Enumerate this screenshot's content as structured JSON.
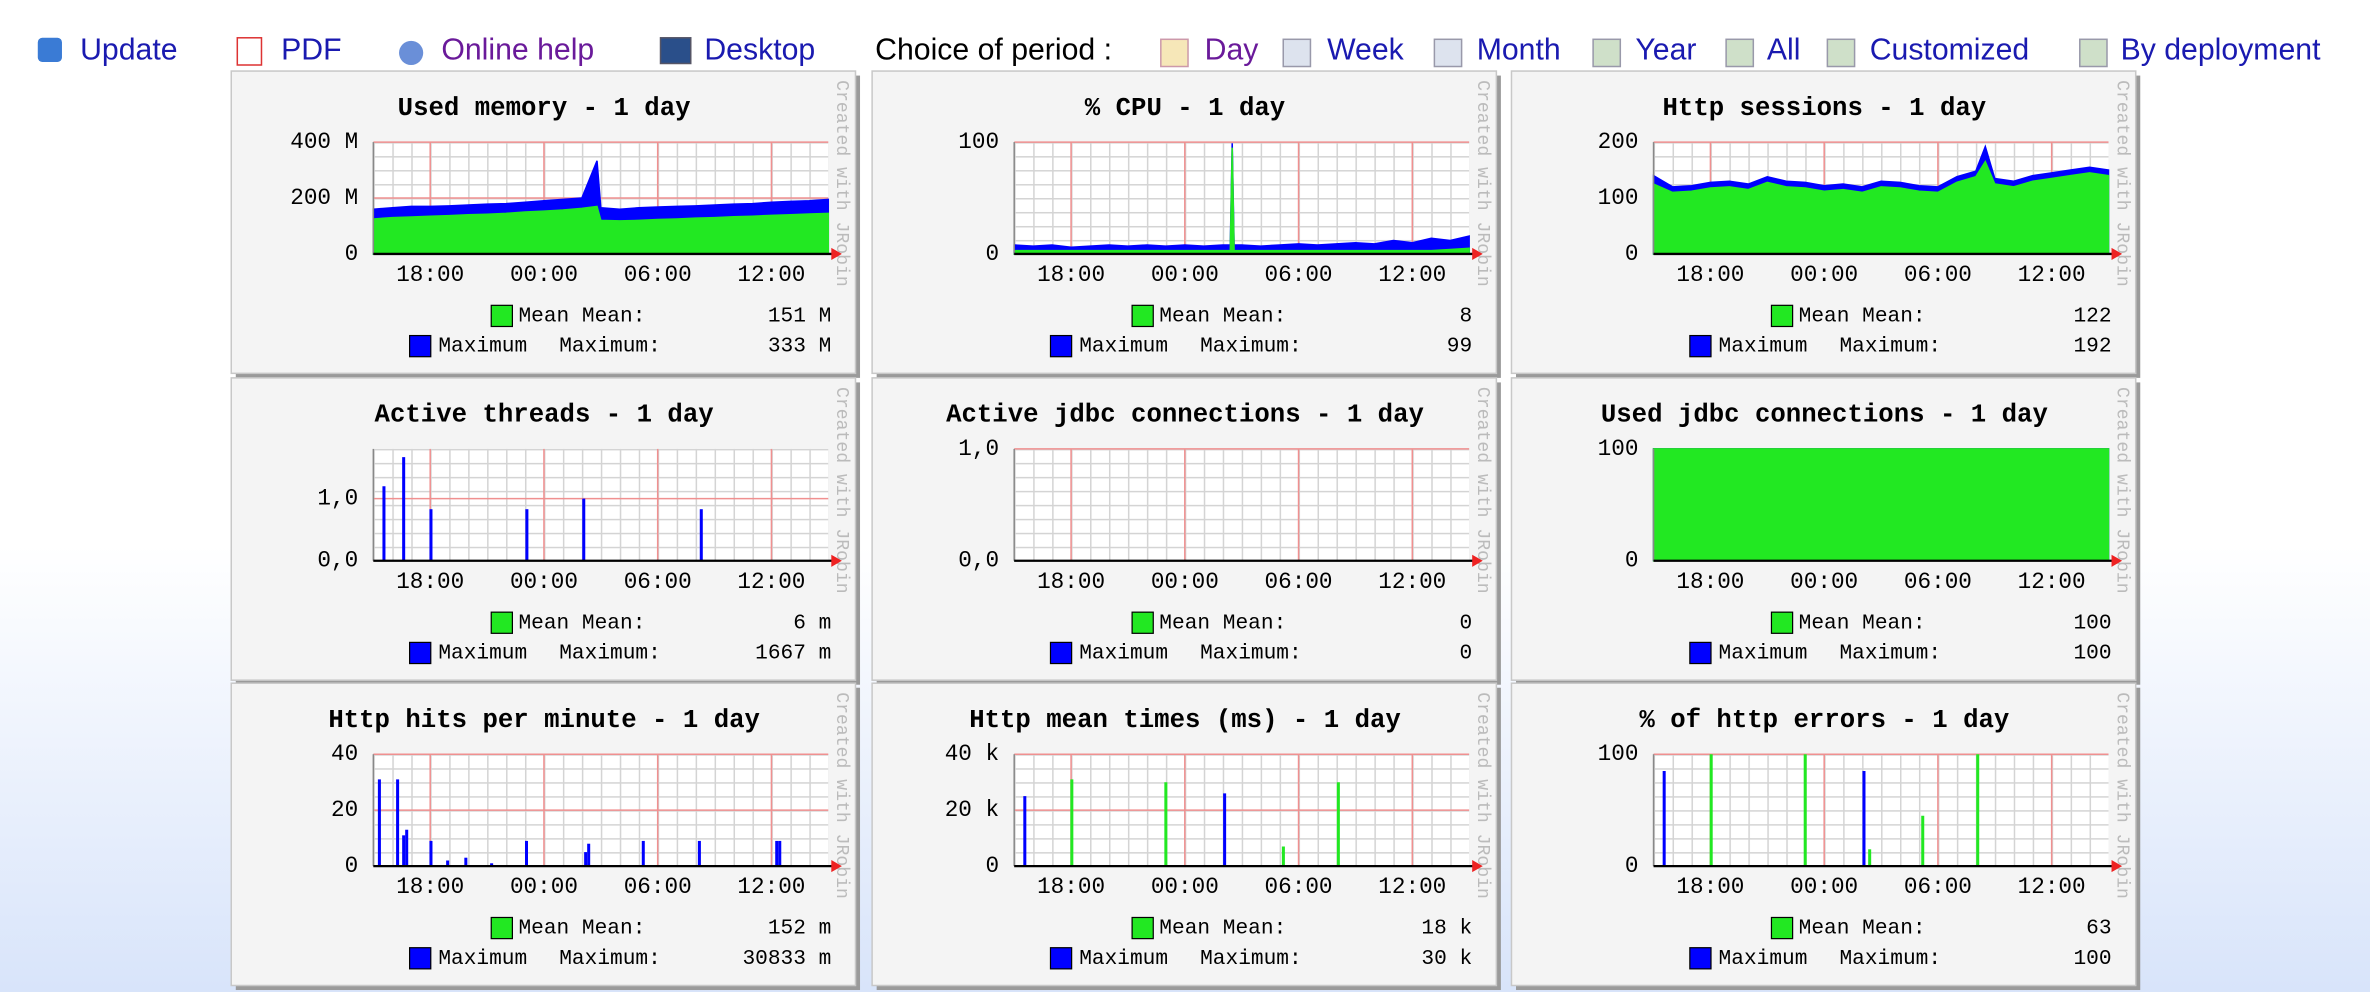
{
  "toolbar": {
    "links": [
      "Update",
      "PDF",
      "Online help",
      "Desktop"
    ],
    "period_label": "Choice of period :",
    "periods": [
      "Day",
      "Week",
      "Month",
      "Year",
      "All",
      "Customized",
      "By deployment"
    ]
  },
  "watermark": "Created with JRobin",
  "time_axis": {
    "xlim": [
      15,
      39
    ],
    "xticks": [
      {
        "value": 18,
        "label": "18:00"
      },
      {
        "value": 24,
        "label": "00:00"
      },
      {
        "value": 30,
        "label": "06:00"
      },
      {
        "value": 36,
        "label": "12:00"
      }
    ]
  },
  "charts": [
    {
      "title": "Used memory - 1 day",
      "type": "area",
      "ylim": [
        0,
        400
      ],
      "yticks": [
        0,
        {
          "value": 200,
          "label": "200 M"
        },
        {
          "value": 400,
          "label": "400 M"
        }
      ],
      "x": [
        15,
        16,
        17,
        18,
        19,
        20,
        21,
        22,
        23,
        24,
        25,
        26,
        26.8,
        27,
        28,
        29,
        30,
        31,
        32,
        33,
        34,
        35,
        36,
        37,
        38,
        39
      ],
      "series": [
        {
          "name": "Mean",
          "color": "#22e822",
          "values": [
            125,
            130,
            132,
            135,
            137,
            140,
            142,
            145,
            150,
            153,
            157,
            163,
            170,
            120,
            118,
            120,
            123,
            125,
            128,
            130,
            133,
            135,
            138,
            140,
            143,
            145
          ]
        },
        {
          "name": "Maximum",
          "color": "#0000ff",
          "values": [
            160,
            165,
            170,
            170,
            172,
            175,
            178,
            180,
            185,
            190,
            195,
            200,
            333,
            165,
            160,
            165,
            168,
            170,
            172,
            175,
            178,
            180,
            185,
            188,
            190,
            195
          ]
        }
      ],
      "legend": [
        {
          "label": "Mean:",
          "value": "151 M"
        },
        {
          "label": "Maximum:",
          "value": "333 M"
        }
      ]
    },
    {
      "title": "% CPU - 1 day",
      "type": "area",
      "ylim": [
        0,
        100
      ],
      "yticks": [
        0,
        100
      ],
      "x": [
        15,
        16,
        17,
        18,
        19,
        20,
        21,
        22,
        23,
        24,
        25,
        26,
        26.4,
        26.5,
        26.6,
        27,
        28,
        29,
        30,
        31,
        32,
        33,
        34,
        35,
        36,
        37,
        38,
        39
      ],
      "series": [
        {
          "name": "Mean",
          "color": "#22e822",
          "values": [
            3,
            3,
            3,
            3,
            3,
            3,
            3,
            3,
            3,
            3,
            3,
            3,
            3,
            95,
            3,
            3,
            3,
            3,
            3,
            3,
            3,
            3,
            3,
            3,
            3,
            3,
            4,
            5
          ]
        },
        {
          "name": "Maximum",
          "color": "#0000ff",
          "values": [
            8,
            7,
            8,
            6,
            7,
            8,
            7,
            8,
            7,
            8,
            7,
            8,
            8,
            99,
            8,
            8,
            7,
            8,
            9,
            8,
            9,
            10,
            9,
            12,
            10,
            14,
            12,
            16
          ]
        }
      ],
      "legend": [
        {
          "label": "Mean:",
          "value": "8"
        },
        {
          "label": "Maximum:",
          "value": "99"
        }
      ]
    },
    {
      "title": "Http sessions - 1 day",
      "type": "area",
      "ylim": [
        0,
        200
      ],
      "yticks": [
        0,
        100,
        200
      ],
      "x": [
        15,
        16,
        17,
        18,
        19,
        20,
        21,
        22,
        23,
        24,
        25,
        26,
        27,
        28,
        29,
        30,
        31,
        32,
        32.5,
        33,
        34,
        35,
        36,
        37,
        38,
        39
      ],
      "series": [
        {
          "name": "Mean",
          "color": "#22e822",
          "values": [
            125,
            110,
            112,
            118,
            120,
            115,
            128,
            120,
            118,
            112,
            115,
            110,
            120,
            118,
            112,
            110,
            128,
            138,
            165,
            125,
            120,
            130,
            135,
            140,
            145,
            140
          ]
        },
        {
          "name": "Maximum",
          "color": "#0000ff",
          "values": [
            140,
            120,
            122,
            128,
            130,
            125,
            138,
            130,
            128,
            122,
            125,
            120,
            130,
            128,
            122,
            120,
            138,
            148,
            192,
            135,
            130,
            140,
            145,
            150,
            155,
            150
          ]
        }
      ],
      "legend": [
        {
          "label": "Mean:",
          "value": "122"
        },
        {
          "label": "Maximum:",
          "value": "192"
        }
      ]
    },
    {
      "title": "Active threads - 1 day",
      "type": "spikes",
      "ylim": [
        0,
        1.8
      ],
      "yticks": [
        {
          "value": 0,
          "label": "0,0"
        },
        {
          "value": 1,
          "label": "1,0"
        }
      ],
      "series": [
        {
          "name": "Mean",
          "color": "#22e822",
          "x": [],
          "values": []
        },
        {
          "name": "Maximum",
          "color": "#0000ff",
          "x": [
            15.56,
            16.6,
            18.04,
            23.1,
            26.1,
            32.3
          ],
          "values": [
            1.2,
            1.667,
            0.83,
            0.83,
            1.0,
            0.83
          ]
        }
      ],
      "legend": [
        {
          "label": "Mean:",
          "value": "6 m"
        },
        {
          "label": "Maximum:",
          "value": "1667 m"
        }
      ]
    },
    {
      "title": "Active jdbc connections - 1 day",
      "type": "area",
      "ylim": [
        0,
        1
      ],
      "yticks": [
        {
          "value": 0,
          "label": "0,0"
        },
        {
          "value": 1,
          "label": "1,0"
        }
      ],
      "x": [
        15,
        39
      ],
      "series": [
        {
          "name": "Mean",
          "color": "#22e822",
          "values": [
            0,
            0
          ]
        },
        {
          "name": "Maximum",
          "color": "#0000ff",
          "values": [
            0,
            0
          ]
        }
      ],
      "legend": [
        {
          "label": "Mean:",
          "value": "0"
        },
        {
          "label": "Maximum:",
          "value": "0"
        }
      ]
    },
    {
      "title": "Used jdbc connections - 1 day",
      "type": "area",
      "ylim": [
        0,
        100
      ],
      "yticks": [
        0,
        100
      ],
      "x": [
        15,
        39
      ],
      "series": [
        {
          "name": "Mean",
          "color": "#22e822",
          "values": [
            100,
            100
          ]
        },
        {
          "name": "Maximum",
          "color": "#0000ff",
          "values": [
            100,
            100
          ]
        }
      ],
      "legend": [
        {
          "label": "Mean:",
          "value": "100"
        },
        {
          "label": "Maximum:",
          "value": "100"
        }
      ]
    },
    {
      "title": "Http hits per minute - 1 day",
      "type": "spikes",
      "ylim": [
        0,
        40
      ],
      "yticks": [
        0,
        20,
        40
      ],
      "series": [
        {
          "name": "Mean",
          "color": "#22e822",
          "x": [],
          "values": []
        },
        {
          "name": "Maximum",
          "color": "#0000ff",
          "x": [
            15.32,
            16.28,
            16.6,
            16.76,
            18.04,
            18.92,
            19.88,
            21.24,
            23.08,
            26.2,
            26.36,
            29.24,
            32.2,
            36.28,
            36.44
          ],
          "values": [
            31,
            31,
            11,
            13,
            9,
            2,
            3,
            1,
            9,
            5,
            8,
            9,
            9,
            9,
            9
          ]
        }
      ],
      "legend": [
        {
          "label": "Mean:",
          "value": "152 m"
        },
        {
          "label": "Maximum:",
          "value": "30833 m"
        }
      ]
    },
    {
      "title": "Http mean times (ms) - 1 day",
      "type": "spikes",
      "ylim": [
        0,
        40
      ],
      "yticks": [
        0,
        {
          "value": 20,
          "label": "20 k"
        },
        {
          "value": 40,
          "label": "40 k"
        }
      ],
      "series": [
        {
          "name": "Mean",
          "color": "#22e822",
          "x": [
            18.04,
            23.0,
            29.2,
            32.1
          ],
          "values": [
            31,
            30,
            7,
            30
          ]
        },
        {
          "name": "Maximum",
          "color": "#0000ff",
          "x": [
            15.56,
            26.1
          ],
          "values": [
            25,
            26
          ]
        }
      ],
      "legend": [
        {
          "label": "Mean:",
          "value": "18 k"
        },
        {
          "label": "Maximum:",
          "value": "30 k"
        }
      ]
    },
    {
      "title": "% of http errors - 1 day",
      "type": "spikes",
      "ylim": [
        0,
        100
      ],
      "yticks": [
        0,
        100
      ],
      "series": [
        {
          "name": "Mean",
          "color": "#22e822",
          "x": [
            18.04,
            23.0,
            26.4,
            29.2,
            32.1
          ],
          "values": [
            100,
            100,
            15,
            45,
            100
          ]
        },
        {
          "name": "Maximum",
          "color": "#0000ff",
          "x": [
            15.56,
            26.1
          ],
          "values": [
            85,
            85
          ]
        }
      ],
      "legend": [
        {
          "label": "Mean:",
          "value": "63"
        },
        {
          "label": "Maximum:",
          "value": "100"
        }
      ]
    }
  ]
}
